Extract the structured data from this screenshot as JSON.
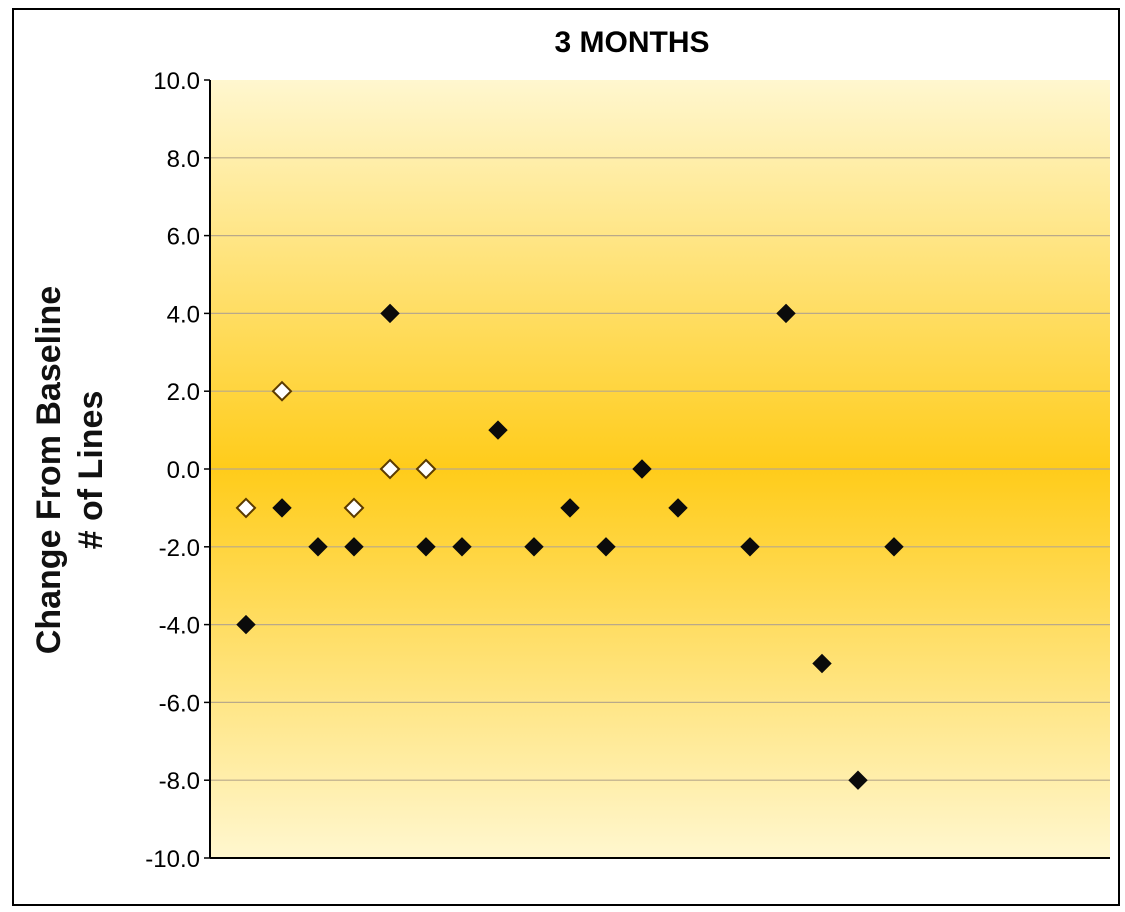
{
  "chart_data": {
    "type": "scatter",
    "title": "3 MONTHS",
    "ylabel_line1": "Change From Baseline",
    "ylabel_line2": "# of Lines",
    "xlabel": "",
    "ylim": [
      -10,
      10
    ],
    "yticks": [
      10,
      8,
      6,
      4,
      2,
      0,
      -2,
      -4,
      -6,
      -8,
      -10
    ],
    "ytick_labels": [
      "10.0",
      "8.0",
      "6.0",
      "4.0",
      "2.0",
      "0.0",
      "-2.0",
      "-4.0",
      "-6.0",
      "-8.0",
      "-10.0"
    ],
    "xlim": [
      0,
      25
    ],
    "grid": true,
    "legend": "none",
    "colors": {
      "filled": "#0b0b0b",
      "hollow_fill": "#ffffff",
      "hollow_stroke": "#5a3a00",
      "background_edge": "#fff7cf",
      "background_center": "#ffcc1a"
    },
    "series": [
      {
        "marker": "filled-diamond",
        "points": [
          {
            "x": 1,
            "y": -4
          },
          {
            "x": 2,
            "y": -1
          },
          {
            "x": 3,
            "y": -2
          },
          {
            "x": 4,
            "y": -2
          },
          {
            "x": 5,
            "y": 4
          },
          {
            "x": 6,
            "y": -2
          },
          {
            "x": 7,
            "y": -2
          },
          {
            "x": 8,
            "y": 1
          },
          {
            "x": 9,
            "y": -2
          },
          {
            "x": 10,
            "y": -1
          },
          {
            "x": 11,
            "y": -2
          },
          {
            "x": 12,
            "y": 0
          },
          {
            "x": 13,
            "y": -1
          },
          {
            "x": 15,
            "y": -2
          },
          {
            "x": 16,
            "y": 4
          },
          {
            "x": 17,
            "y": -5
          },
          {
            "x": 18,
            "y": -8
          },
          {
            "x": 19,
            "y": -2
          }
        ]
      },
      {
        "marker": "hollow-diamond",
        "points": [
          {
            "x": 1,
            "y": -1
          },
          {
            "x": 2,
            "y": 2
          },
          {
            "x": 4,
            "y": -1
          },
          {
            "x": 5,
            "y": 0
          },
          {
            "x": 6,
            "y": 0
          }
        ]
      }
    ]
  }
}
